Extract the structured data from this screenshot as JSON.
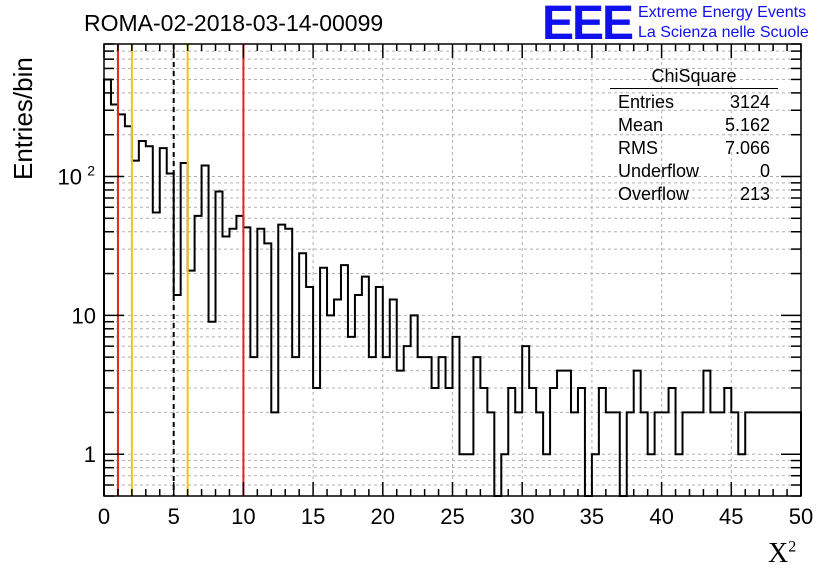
{
  "chart_data": {
    "type": "histogram",
    "title": "ROMA-02-2018-03-14-00099",
    "xlabel": "X",
    "xlabel_sup": "2",
    "ylabel": "Entries/bin",
    "xlim": [
      0,
      50
    ],
    "ylim": [
      0.5,
      900
    ],
    "yscale": "log",
    "grid": true,
    "bin_width": 0.5,
    "x_ticks": [
      0,
      5,
      10,
      15,
      20,
      25,
      30,
      35,
      40,
      45,
      50
    ],
    "y_ticks": [
      {
        "value": 1,
        "label": "1"
      },
      {
        "value": 10,
        "label": "10"
      },
      {
        "value": 100,
        "label": "10",
        "sup": "2"
      }
    ],
    "counts": [
      500,
      330,
      280,
      230,
      130,
      180,
      165,
      55,
      160,
      105,
      14,
      125,
      21,
      52,
      120,
      9,
      78,
      37,
      42,
      52,
      43,
      5,
      42,
      33,
      2,
      45,
      42,
      5,
      28,
      16,
      3,
      22,
      10,
      13,
      23,
      7,
      14,
      19,
      5,
      16,
      5,
      13,
      4,
      6,
      10,
      5,
      5,
      3,
      5,
      3,
      7,
      1,
      1,
      5,
      3,
      2,
      0.5,
      1,
      3,
      2,
      6,
      3,
      2,
      1,
      3,
      4,
      4,
      2,
      3,
      0.5,
      1,
      3,
      2,
      2,
      0.5,
      2,
      4,
      2,
      1,
      2,
      2,
      3,
      1,
      2,
      2,
      2,
      4,
      2,
      2,
      3,
      2,
      1,
      2,
      2,
      2,
      2,
      2,
      2,
      2,
      2
    ],
    "vlines": [
      {
        "x": 1,
        "color": "#e8231f",
        "style": "solid"
      },
      {
        "x": 2,
        "color": "#f0c419",
        "style": "solid"
      },
      {
        "x": 5,
        "color": "#000000",
        "style": "dashed"
      },
      {
        "x": 6,
        "color": "#f0c419",
        "style": "solid"
      },
      {
        "x": 10,
        "color": "#e8231f",
        "style": "solid"
      }
    ],
    "stats_box": {
      "title": "ChiSquare",
      "rows": [
        {
          "label": "Entries",
          "value": "3124"
        },
        {
          "label": "Mean",
          "value": "5.162"
        },
        {
          "label": "RMS",
          "value": "7.066"
        },
        {
          "label": "Underflow",
          "value": "0"
        },
        {
          "label": "Overflow",
          "value": "213"
        }
      ]
    }
  },
  "logo": {
    "big": "EEE",
    "line1": "Extreme Energy Events",
    "line2": "La Scienza nelle Scuole",
    "color": "#1010ee"
  }
}
